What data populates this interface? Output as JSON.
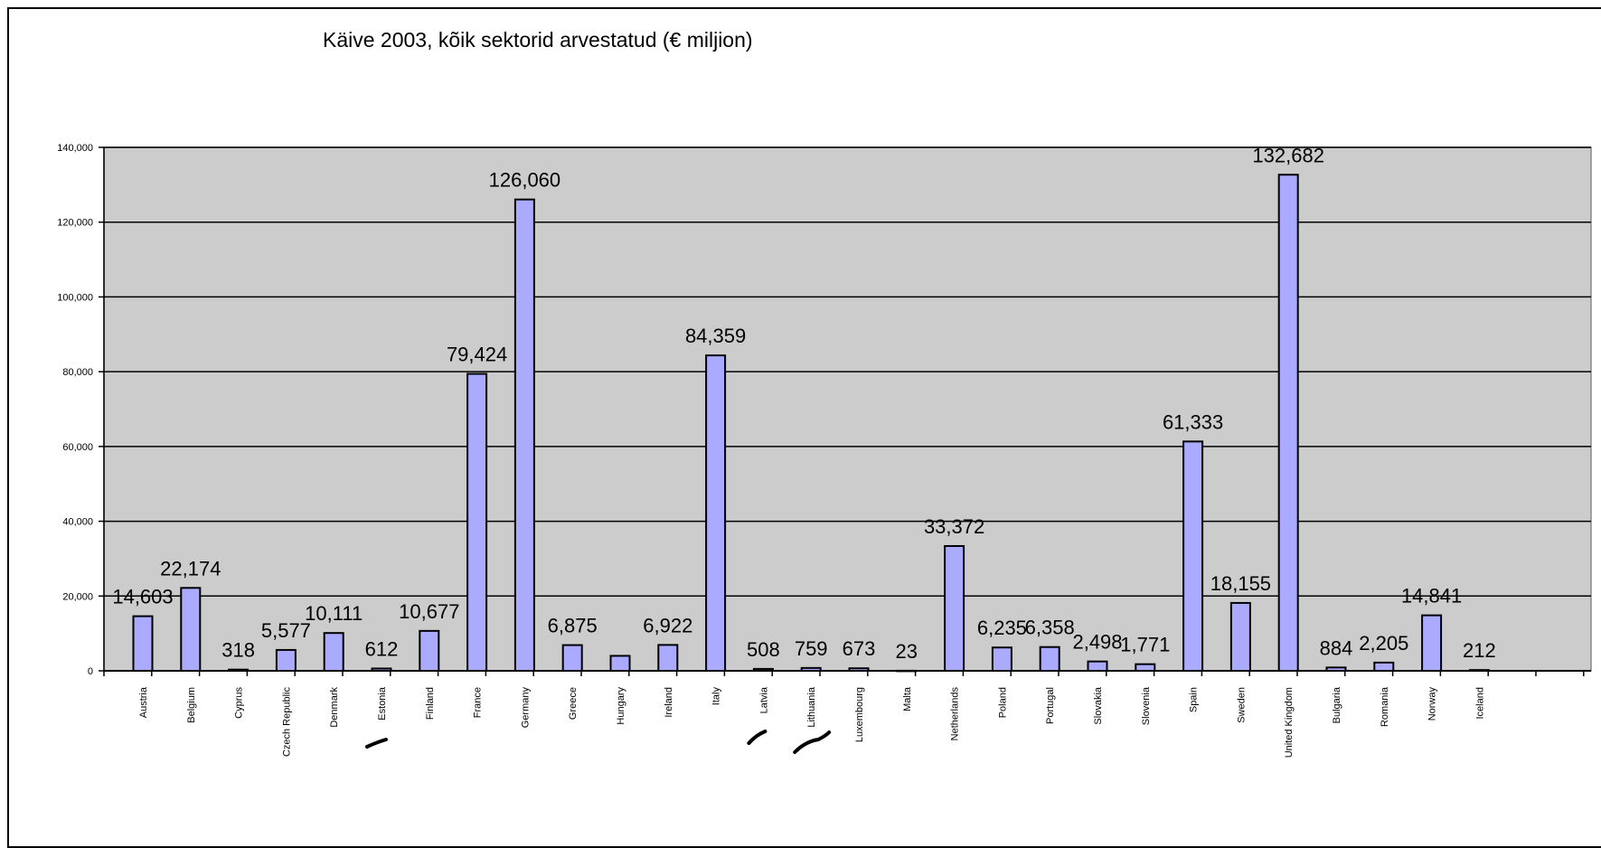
{
  "chart_data": {
    "type": "bar",
    "title": "Käive 2003, kõik sektorid arvestatud (€ miljion)",
    "xlabel": "",
    "ylabel": "",
    "ylim": [
      0,
      140000
    ],
    "yticks": [
      0,
      20000,
      40000,
      60000,
      80000,
      100000,
      120000,
      140000
    ],
    "ytick_labels": [
      "0",
      "20,000",
      "40,000",
      "60,000",
      "80,000",
      "100,000",
      "120,000",
      "140,000"
    ],
    "categories": [
      "Austria",
      "Belgium",
      "Cyprus",
      "Czech Republic",
      "Denmark",
      "Estonia",
      "Finland",
      "France",
      "Germany",
      "Greece",
      "Hungary",
      "Ireland",
      "Italy",
      "Latvia",
      "Lithuania",
      "Luxembourg",
      "Malta",
      "Netherlands",
      "Poland",
      "Portugal",
      "Slovakia",
      "Slovenia",
      "Spain",
      "Sweden",
      "United Kingdom",
      "Bulgaria",
      "Romania",
      "Norway",
      "Iceland"
    ],
    "values": [
      14603,
      22174,
      318,
      5577,
      10111,
      612,
      10677,
      79424,
      126060,
      6875,
      4000,
      6922,
      84359,
      508,
      759,
      673,
      23,
      33372,
      6235,
      6358,
      2498,
      1771,
      61333,
      18155,
      132682,
      884,
      2205,
      14841,
      212
    ],
    "data_labels": [
      "14,603",
      "22,174",
      "318",
      "5,577",
      "10,111",
      "612",
      "10,677",
      "79,424",
      "126,060",
      "6,875",
      "",
      "6,922",
      "84,359",
      "508",
      "759",
      "673",
      "23",
      "33,372",
      "6,235",
      "6,358",
      "2,498",
      "1,771",
      "61,333",
      "18,155",
      "132,682",
      "884",
      "2,205",
      "14,841",
      "212"
    ],
    "grid": true,
    "legend": "none",
    "colors": {
      "bar_fill": "#aaaaff",
      "bar_stroke": "#000000",
      "plot_bg": "#cccccc",
      "gridline": "#000000",
      "pen_mark": "#000000"
    },
    "annotations": [
      {
        "type": "pen-stroke",
        "near_category": "Estonia"
      },
      {
        "type": "pen-stroke",
        "near_category": "Latvia"
      },
      {
        "type": "pen-stroke",
        "near_category": "Lithuania"
      }
    ]
  }
}
